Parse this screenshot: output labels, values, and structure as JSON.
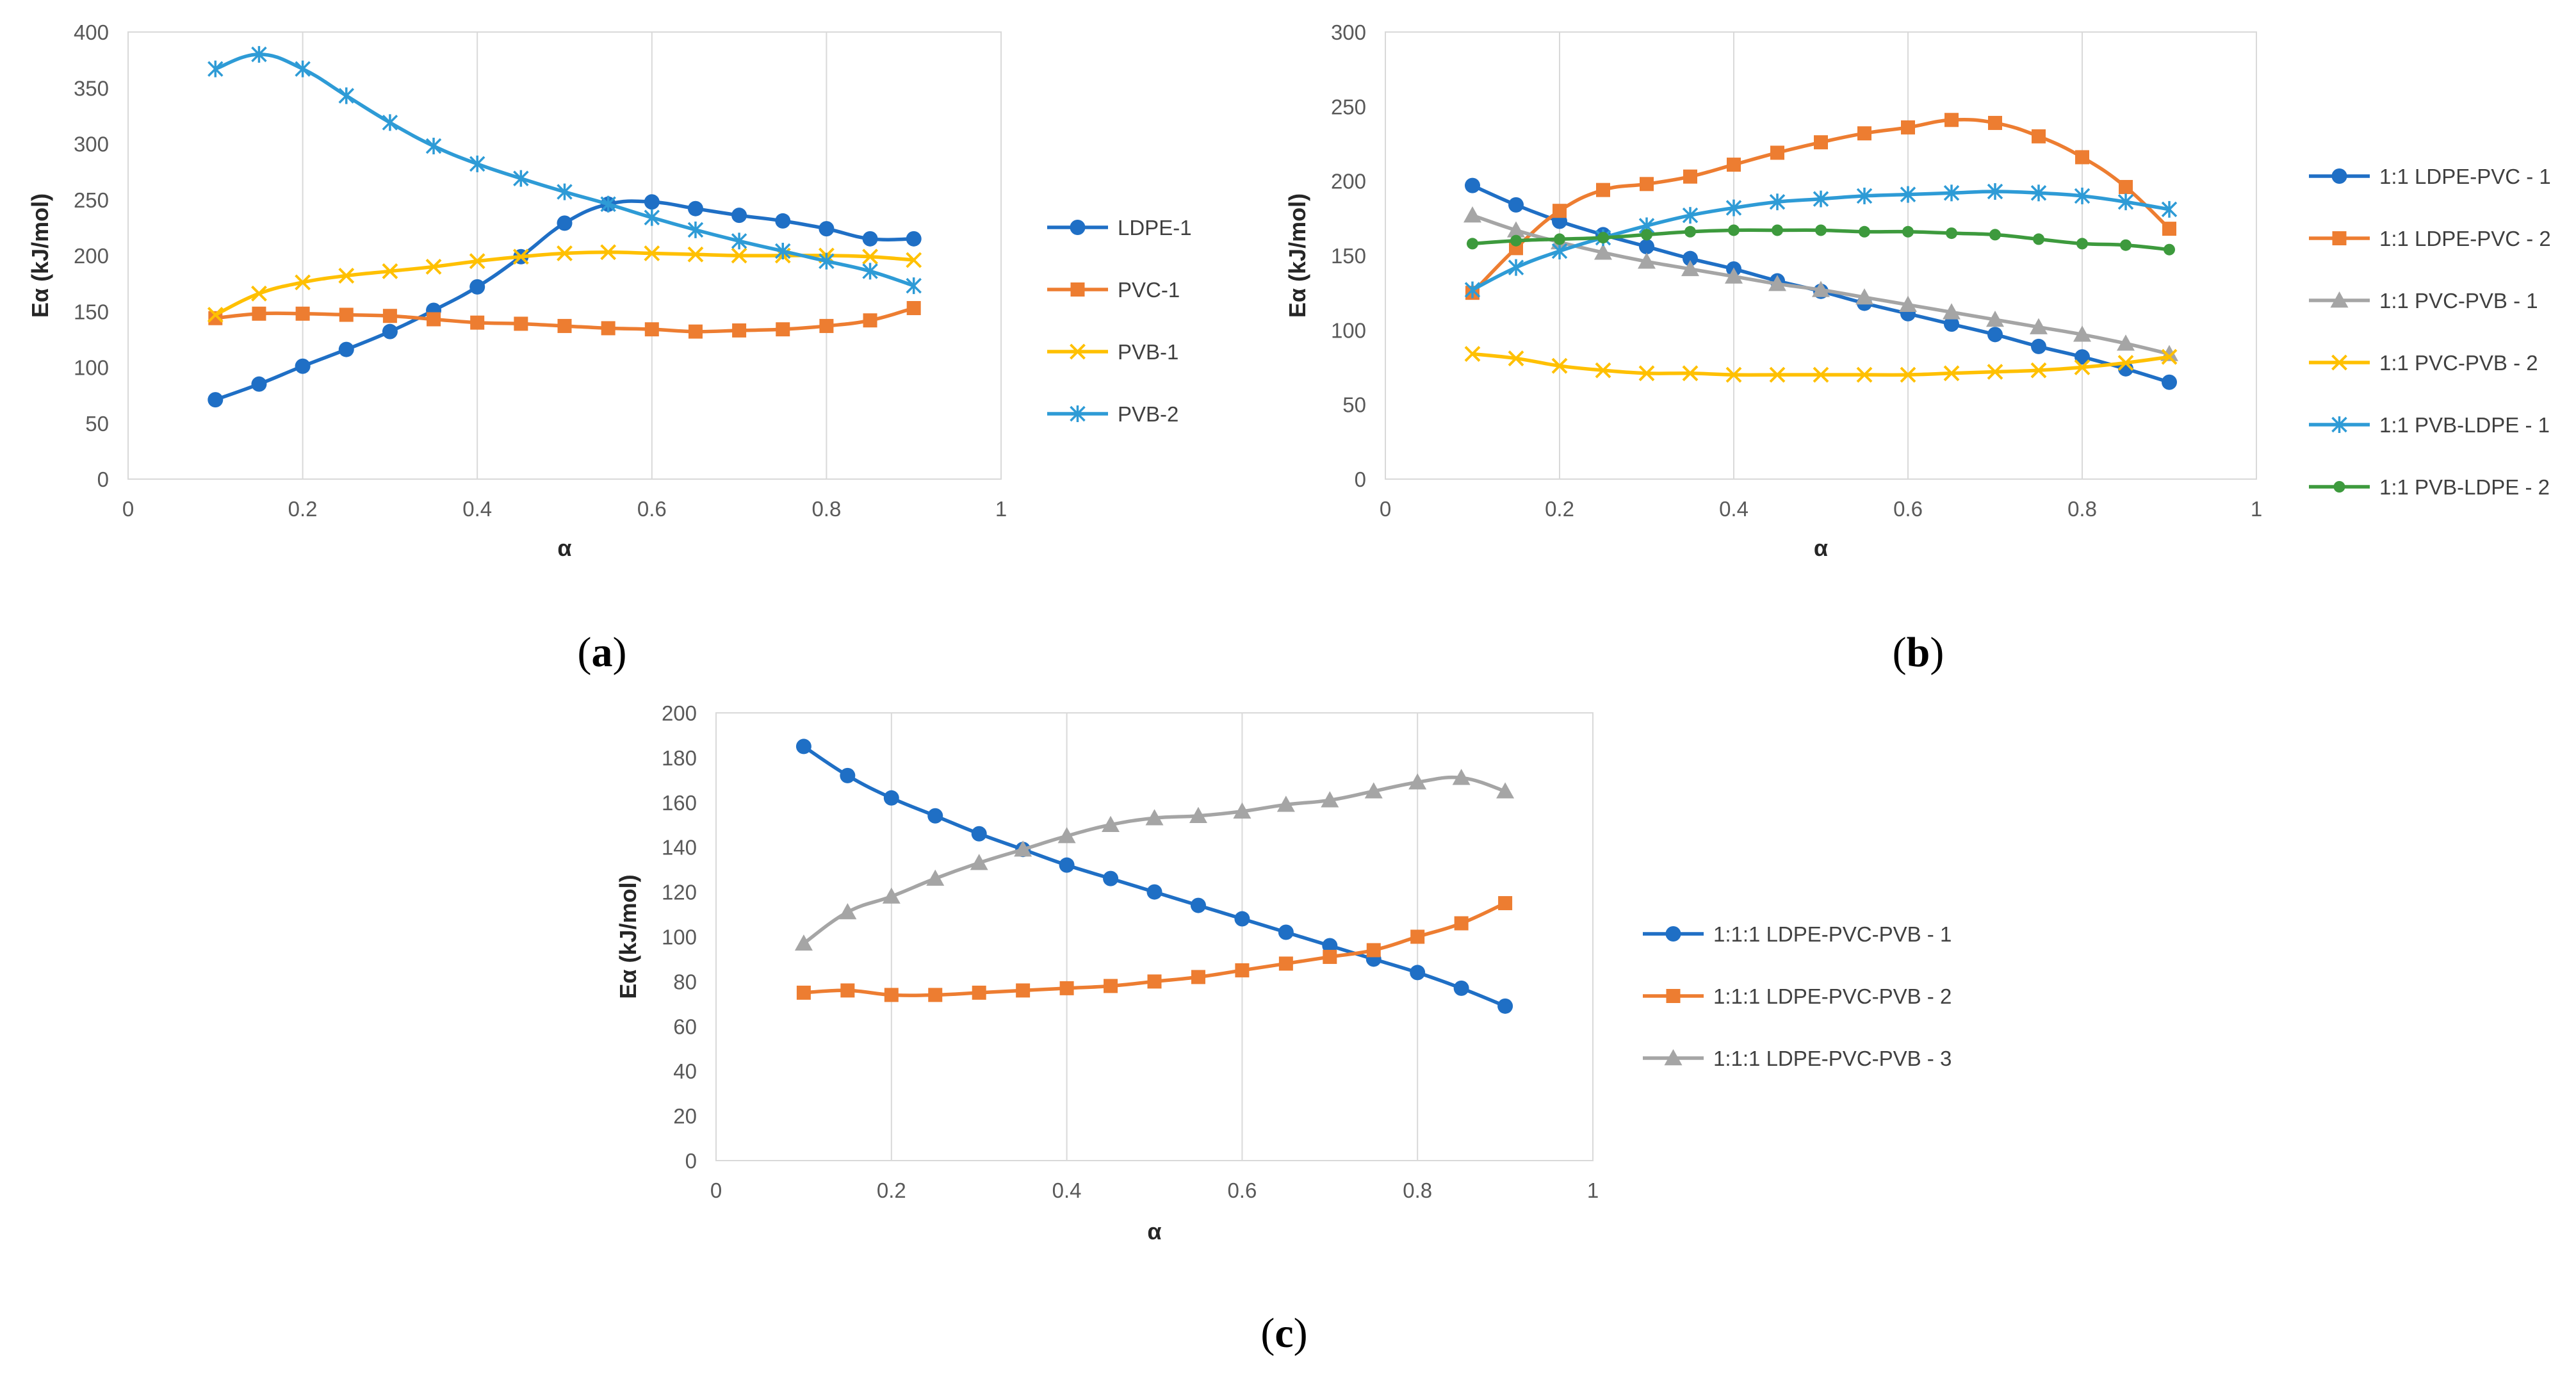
{
  "chart_data": [
    {
      "type": "line",
      "panel_label": "a",
      "xlabel": "α",
      "ylabel": "Eα (kJ/mol)",
      "xlim": [
        0,
        1
      ],
      "ylim": [
        0,
        400
      ],
      "xticks": [
        0,
        0.2,
        0.4,
        0.6,
        0.8,
        1
      ],
      "yticks": [
        0,
        50,
        100,
        150,
        200,
        250,
        300,
        350,
        400
      ],
      "grid": "vertical",
      "legend": "right",
      "x": [
        0.1,
        0.15,
        0.2,
        0.25,
        0.3,
        0.35,
        0.4,
        0.45,
        0.5,
        0.55,
        0.6,
        0.65,
        0.7,
        0.75,
        0.8,
        0.85,
        0.9
      ],
      "series": [
        {
          "name": "LDPE-1",
          "color": "#1f6fc5",
          "marker": "circle",
          "values": [
            71,
            85,
            101,
            116,
            132,
            151,
            172,
            199,
            229,
            246,
            248,
            242,
            236,
            231,
            224,
            215,
            215
          ]
        },
        {
          "name": "PVC-1",
          "color": "#ed7d31",
          "marker": "square",
          "values": [
            144,
            148,
            148,
            147,
            146,
            143,
            140,
            139,
            137,
            135,
            134,
            132,
            133,
            134,
            137,
            142,
            153
          ]
        },
        {
          "name": "PVB-1",
          "color": "#ffc000",
          "marker": "x",
          "values": [
            147,
            166,
            176,
            182,
            186,
            190,
            195,
            199,
            202,
            203,
            202,
            201,
            200,
            200,
            200,
            199,
            196
          ]
        },
        {
          "name": "PVB-2",
          "color": "#2e9bd6",
          "marker": "star",
          "values": [
            367,
            380,
            367,
            343,
            319,
            298,
            282,
            269,
            257,
            246,
            234,
            223,
            213,
            204,
            195,
            186,
            173
          ]
        }
      ]
    },
    {
      "type": "line",
      "panel_label": "b",
      "xlabel": "α",
      "ylabel": "Eα (kJ/mol)",
      "xlim": [
        0,
        1
      ],
      "ylim": [
        0,
        300
      ],
      "xticks": [
        0,
        0.2,
        0.4,
        0.6,
        0.8,
        1
      ],
      "yticks": [
        0,
        50,
        100,
        150,
        200,
        250,
        300
      ],
      "grid": "vertical",
      "legend": "right",
      "x": [
        0.1,
        0.15,
        0.2,
        0.25,
        0.3,
        0.35,
        0.4,
        0.45,
        0.5,
        0.55,
        0.6,
        0.65,
        0.7,
        0.75,
        0.8,
        0.85,
        0.9
      ],
      "series": [
        {
          "name": "1:1 LDPE-PVC - 1",
          "color": "#1f6fc5",
          "marker": "circle",
          "values": [
            197,
            184,
            173,
            164,
            156,
            148,
            141,
            133,
            126,
            118,
            111,
            104,
            97,
            89,
            82,
            74,
            65
          ]
        },
        {
          "name": "1:1 LDPE-PVC - 2",
          "color": "#ed7d31",
          "marker": "square",
          "values": [
            125,
            155,
            180,
            194,
            198,
            203,
            211,
            219,
            226,
            232,
            236,
            241,
            239,
            230,
            216,
            196,
            168
          ]
        },
        {
          "name": "1:1 PVC-PVB - 1",
          "color": "#a5a5a5",
          "marker": "triangle",
          "values": [
            177,
            167,
            159,
            152,
            146,
            141,
            136,
            131,
            127,
            122,
            117,
            112,
            107,
            102,
            97,
            91,
            84
          ]
        },
        {
          "name": "1:1 PVC-PVB - 2",
          "color": "#ffc000",
          "marker": "x",
          "values": [
            84,
            81,
            76,
            73,
            71,
            71,
            70,
            70,
            70,
            70,
            70,
            71,
            72,
            73,
            75,
            78,
            82
          ]
        },
        {
          "name": "1:1 PVB-LDPE - 1",
          "color": "#2e9bd6",
          "marker": "star",
          "values": [
            127,
            142,
            153,
            162,
            170,
            177,
            182,
            186,
            188,
            190,
            191,
            192,
            193,
            192,
            190,
            186,
            181
          ]
        },
        {
          "name": "1:1 PVB-LDPE - 2",
          "color": "#3d9a3d",
          "marker": "dot",
          "values": [
            158,
            160,
            161,
            162,
            164,
            166,
            167,
            167,
            167,
            166,
            166,
            165,
            164,
            161,
            158,
            157,
            154
          ]
        }
      ]
    },
    {
      "type": "line",
      "panel_label": "c",
      "xlabel": "α",
      "ylabel": "Eα (kJ/mol)",
      "xlim": [
        0,
        1
      ],
      "ylim": [
        0,
        200
      ],
      "xticks": [
        0,
        0.2,
        0.4,
        0.6,
        0.8,
        1
      ],
      "yticks": [
        0,
        20,
        40,
        60,
        80,
        100,
        120,
        140,
        160,
        180,
        200
      ],
      "grid": "vertical",
      "legend": "right",
      "x": [
        0.1,
        0.15,
        0.2,
        0.25,
        0.3,
        0.35,
        0.4,
        0.45,
        0.5,
        0.55,
        0.6,
        0.65,
        0.7,
        0.75,
        0.8,
        0.85,
        0.9
      ],
      "series": [
        {
          "name": "1:1:1 LDPE-PVC-PVB - 1",
          "color": "#1f6fc5",
          "marker": "circle",
          "values": [
            185,
            172,
            162,
            154,
            146,
            139,
            132,
            126,
            120,
            114,
            108,
            102,
            96,
            90,
            84,
            77,
            69
          ]
        },
        {
          "name": "1:1:1 LDPE-PVC-PVB - 2",
          "color": "#ed7d31",
          "marker": "square",
          "values": [
            75,
            76,
            74,
            74,
            75,
            76,
            77,
            78,
            80,
            82,
            85,
            88,
            91,
            94,
            100,
            106,
            115
          ]
        },
        {
          "name": "1:1:1 LDPE-PVC-PVB - 3",
          "color": "#a5a5a5",
          "marker": "triangle",
          "values": [
            97,
            111,
            118,
            126,
            133,
            139,
            145,
            150,
            153,
            154,
            156,
            159,
            161,
            165,
            169,
            171,
            165
          ]
        }
      ]
    }
  ]
}
